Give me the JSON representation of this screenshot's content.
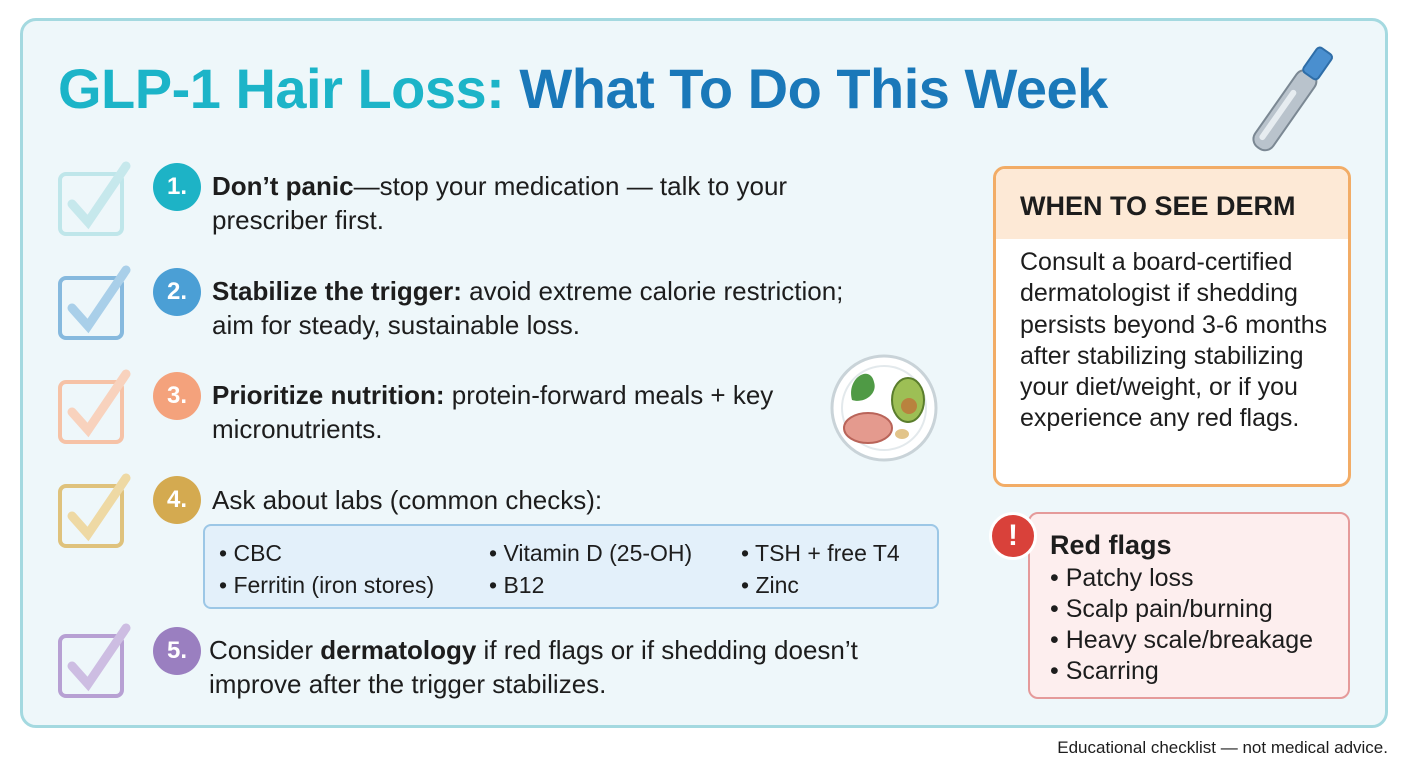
{
  "title": {
    "part1": "GLP-1 Hair Loss:",
    "part2": "What To Do This Week"
  },
  "steps": [
    {
      "number": "1.",
      "bold": "Don’t panic",
      "text": "—stop your medication — talk to your prescriber first."
    },
    {
      "number": "2.",
      "bold": "Stabilize the trigger:",
      "text": " avoid extreme calorie restriction; aim for steady, sustainable loss."
    },
    {
      "number": "3.",
      "bold": "Prioritize nutrition:",
      "text": " protein-forward meals + key micronutrients."
    },
    {
      "number": "4.",
      "text": "Ask about labs (common checks):",
      "labs": [
        "CBC",
        "Vitamin D (25-OH)",
        "TSH + free T4",
        "Ferritin (iron stores)",
        "B12",
        "Zinc"
      ]
    },
    {
      "number": "5.",
      "before": "Consider ",
      "bold": "dermatology",
      "text": " if red flags or if shedding doesn’t improve after the trigger stabilizes."
    }
  ],
  "derm": {
    "title": "WHEN TO SEE DERM",
    "text": "Consult a board-certified dermatologist if shedding persists beyond 3-6 months after stabilizing stabilizing your diet/weight, or if you experience any red flags."
  },
  "red_flags": {
    "title": "Red flags",
    "items": [
      "Patchy loss",
      "Scalp pain/burning",
      "Heavy scale/breakage",
      "Scarring"
    ]
  },
  "footer": "Educational checklist — not medical advice."
}
